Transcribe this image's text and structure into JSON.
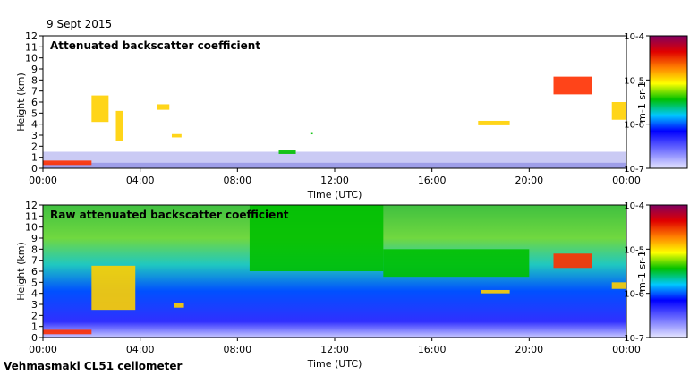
{
  "header": {
    "date": "9 Sept 2015",
    "site": "Vehmasmaki CL51 ceilometer"
  },
  "colors": {
    "low": "#dcdcff",
    "mid_blue": "#0000ff",
    "green": "#00c000",
    "yellow": "#ffff00",
    "orange": "#ff8000",
    "red": "#c00000",
    "high": "#800080"
  },
  "chart_data": [
    {
      "type": "heatmap",
      "title": "Attenuated backscatter coefficient",
      "xlabel": "Time (UTC)",
      "ylabel": "Height (km)",
      "xlim": [
        0,
        24
      ],
      "ylim": [
        0,
        12
      ],
      "x_ticks": [
        "00:00",
        "04:00",
        "08:00",
        "12:00",
        "16:00",
        "20:00",
        "00:00"
      ],
      "y_ticks": [
        "0",
        "1",
        "2",
        "3",
        "4",
        "5",
        "6",
        "7",
        "8",
        "9",
        "10",
        "11",
        "12"
      ],
      "colorbar": {
        "label": "m-1 sr-1",
        "scale": "log",
        "range": [
          1e-07,
          0.0001
        ],
        "ticks": [
          "10-7",
          "10-6",
          "10-5",
          "10-4"
        ]
      },
      "features": [
        {
          "t0": 0.0,
          "t1": 2.0,
          "h0": 0.3,
          "h1": 0.7,
          "level": 5
        },
        {
          "t0": 2.0,
          "t1": 2.7,
          "h0": 4.2,
          "h1": 6.6,
          "level": 4
        },
        {
          "t0": 3.0,
          "t1": 3.3,
          "h0": 2.5,
          "h1": 5.2,
          "level": 4
        },
        {
          "t0": 4.7,
          "t1": 5.2,
          "h0": 5.3,
          "h1": 5.8,
          "level": 4
        },
        {
          "t0": 5.3,
          "t1": 5.7,
          "h0": 2.8,
          "h1": 3.1,
          "level": 4
        },
        {
          "t0": 9.7,
          "t1": 10.4,
          "h0": 1.3,
          "h1": 1.7,
          "level": 3
        },
        {
          "t0": 11.0,
          "t1": 11.1,
          "h0": 3.1,
          "h1": 3.2,
          "level": 3
        },
        {
          "t0": 17.9,
          "t1": 19.2,
          "h0": 3.9,
          "h1": 4.3,
          "level": 4
        },
        {
          "t0": 21.0,
          "t1": 22.6,
          "h0": 6.7,
          "h1": 8.3,
          "level": 5
        },
        {
          "t0": 23.4,
          "t1": 24.0,
          "h0": 4.4,
          "h1": 6.0,
          "level": 4
        }
      ]
    },
    {
      "type": "heatmap",
      "title": "Raw attenuated backscatter coefficient",
      "xlabel": "Time (UTC)",
      "ylabel": "Height (km)",
      "xlim": [
        0,
        24
      ],
      "ylim": [
        0,
        12
      ],
      "x_ticks": [
        "00:00",
        "04:00",
        "08:00",
        "12:00",
        "16:00",
        "20:00",
        "00:00"
      ],
      "y_ticks": [
        "0",
        "1",
        "2",
        "3",
        "4",
        "5",
        "6",
        "7",
        "8",
        "9",
        "10",
        "11",
        "12"
      ],
      "colorbar": {
        "label": "m-1 sr-1",
        "scale": "log",
        "range": [
          1e-07,
          0.0001
        ],
        "ticks": [
          "10-7",
          "10-6",
          "10-5",
          "10-4"
        ]
      },
      "features": [
        {
          "t0": 0.0,
          "t1": 2.0,
          "h0": 0.3,
          "h1": 0.7,
          "level": 5
        },
        {
          "t0": 2.0,
          "t1": 3.8,
          "h0": 2.5,
          "h1": 6.5,
          "level": 4
        },
        {
          "t0": 5.4,
          "t1": 5.8,
          "h0": 2.7,
          "h1": 3.1,
          "level": 4
        },
        {
          "t0": 8.5,
          "t1": 14.0,
          "h0": 6.0,
          "h1": 12.0,
          "level": 3
        },
        {
          "t0": 14.0,
          "t1": 20.0,
          "h0": 5.5,
          "h1": 8.0,
          "level": 3
        },
        {
          "t0": 18.0,
          "t1": 19.2,
          "h0": 4.0,
          "h1": 4.3,
          "level": 4
        },
        {
          "t0": 21.0,
          "t1": 22.6,
          "h0": 6.3,
          "h1": 7.6,
          "level": 5
        },
        {
          "t0": 23.4,
          "t1": 24.0,
          "h0": 4.4,
          "h1": 5.0,
          "level": 4
        }
      ]
    }
  ]
}
